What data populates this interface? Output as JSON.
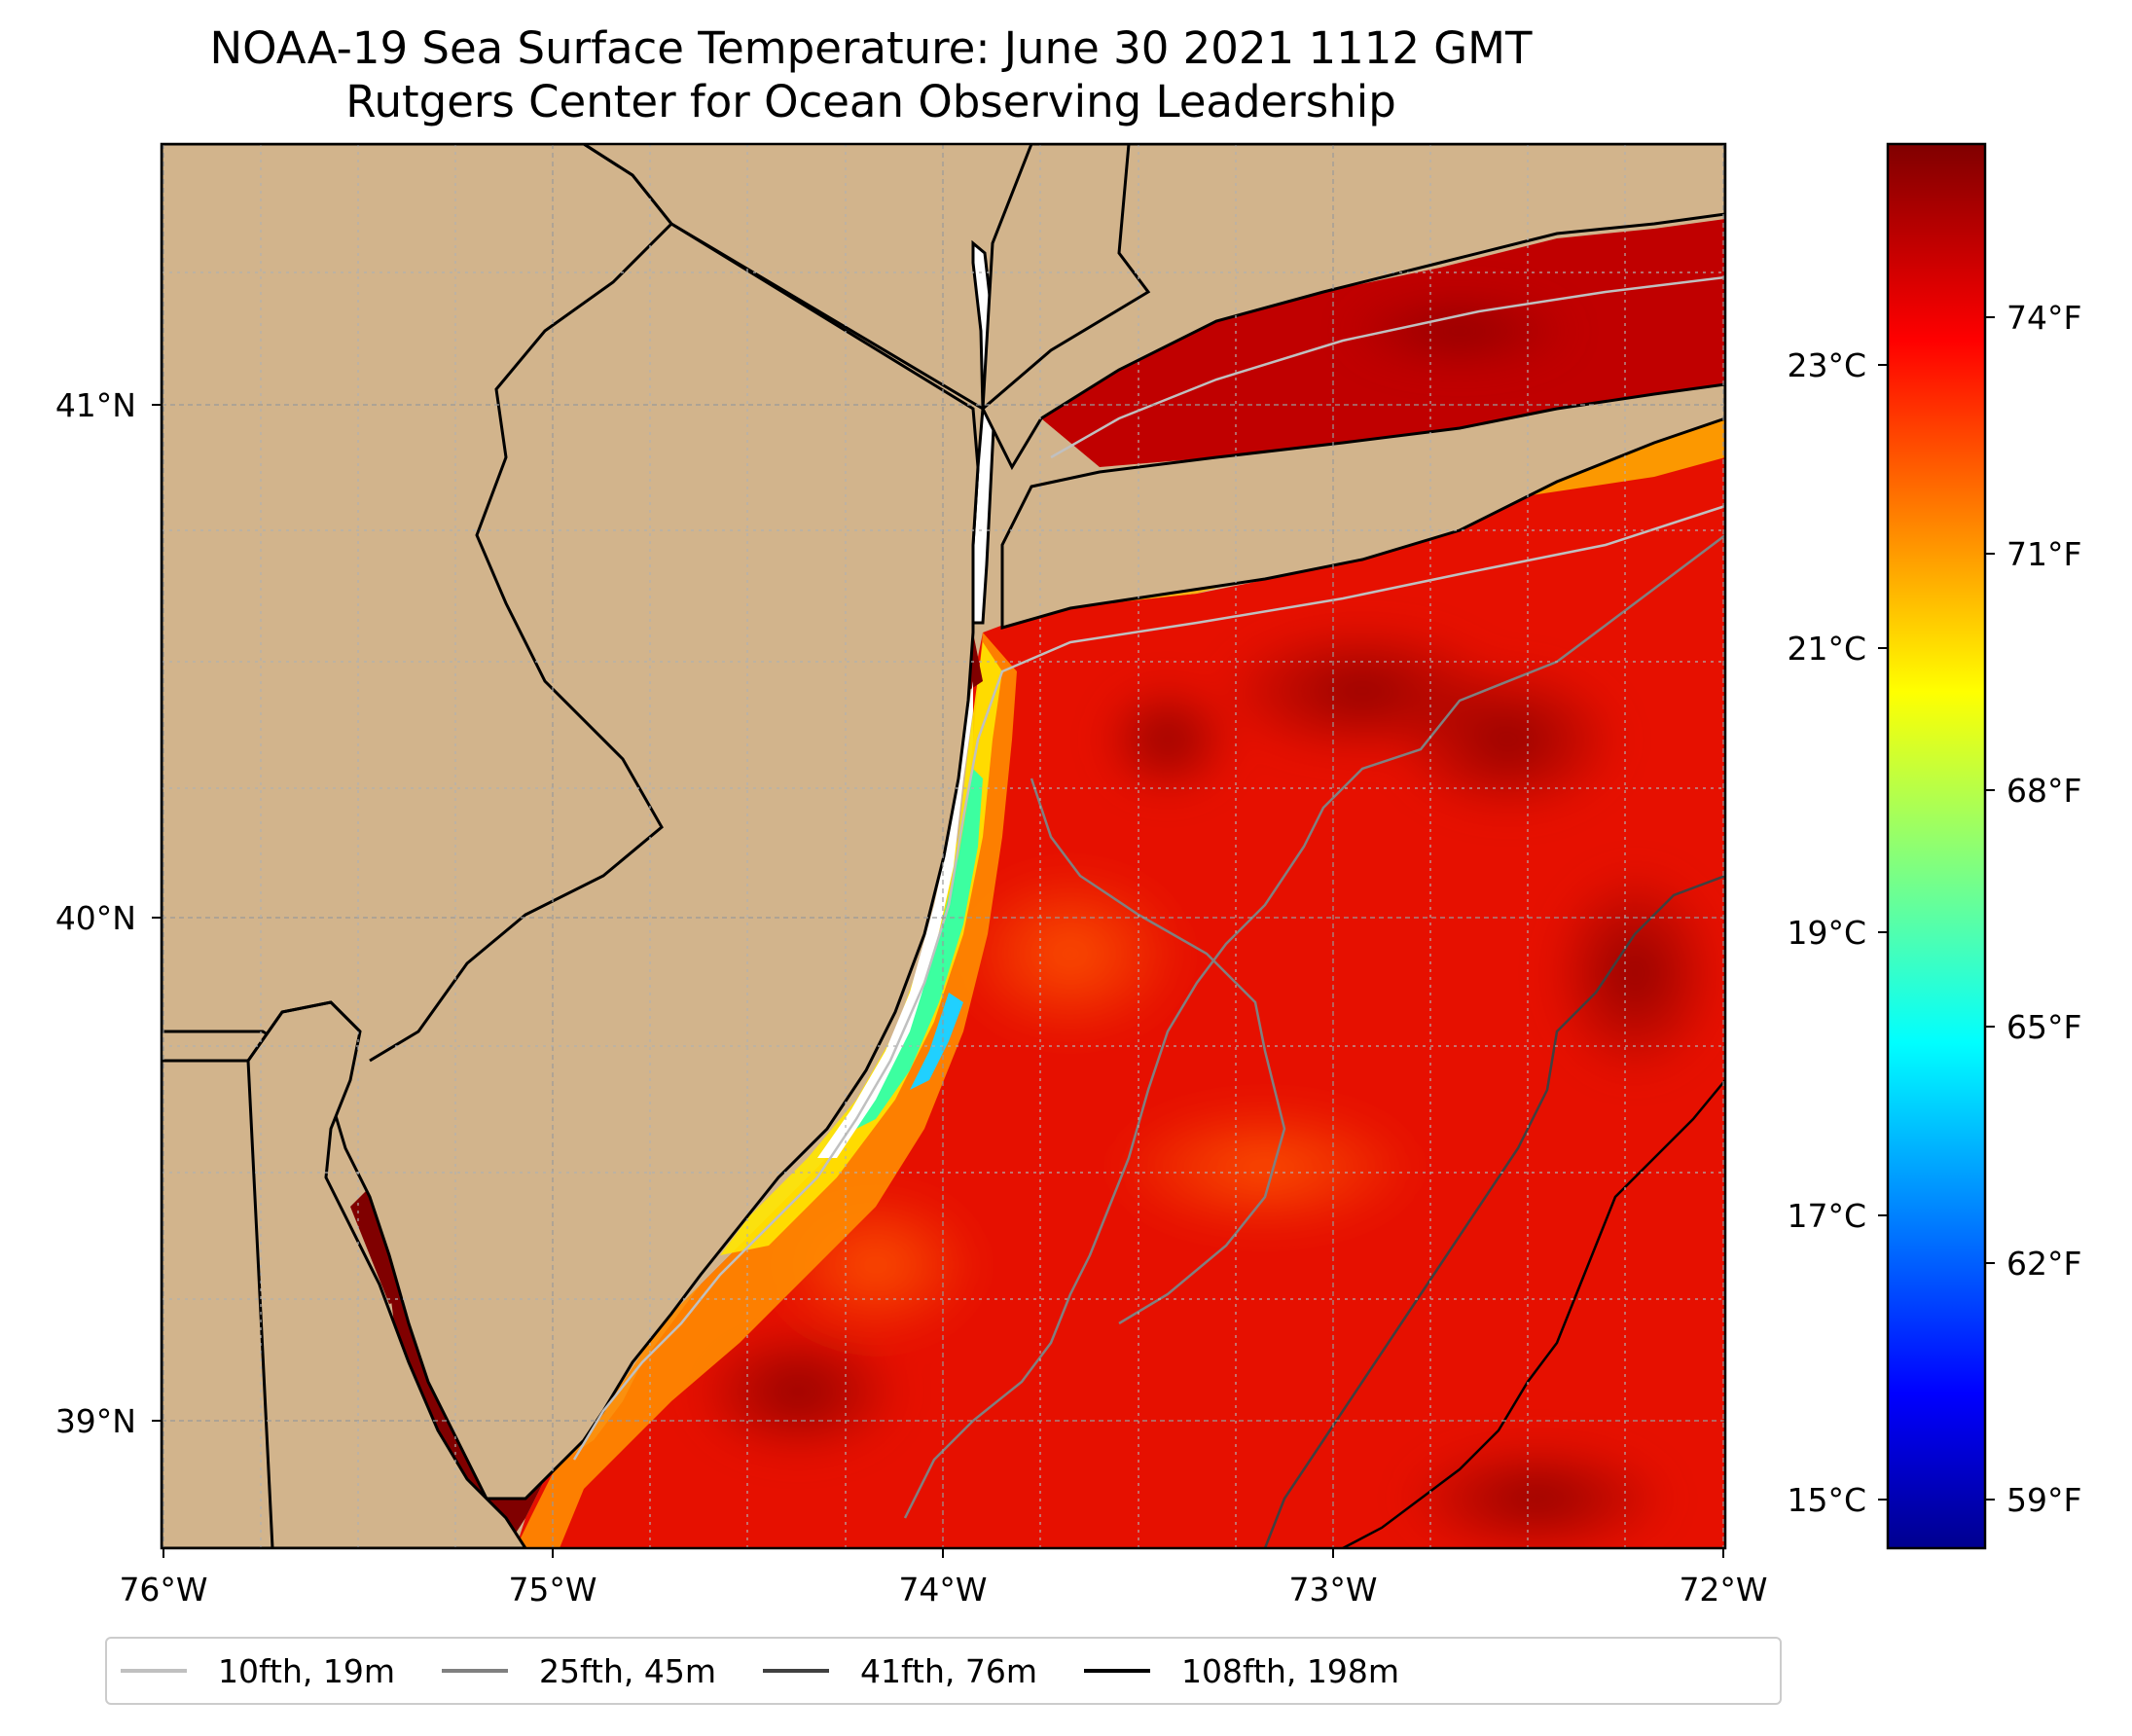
{
  "title": {
    "line1": "NOAA-19 Sea Surface Temperature: June 30 2021 1112 GMT",
    "line2": "Rutgers Center for Ocean Observing Leadership"
  },
  "map": {
    "lon_range": [
      -76,
      -72
    ],
    "lat_range": [
      38.75,
      41.5
    ],
    "lon_ticks": [
      {
        "value": -76,
        "label": "76°W"
      },
      {
        "value": -75,
        "label": "75°W"
      },
      {
        "value": -74,
        "label": "74°W"
      },
      {
        "value": -73,
        "label": "73°W"
      },
      {
        "value": -72,
        "label": "72°W"
      }
    ],
    "lat_ticks": [
      {
        "value": 41,
        "label": "41°N"
      },
      {
        "value": 40,
        "label": "40°N"
      },
      {
        "value": 39,
        "label": "39°N"
      }
    ],
    "land_color": "#d2b48c",
    "gridlines": "dashed"
  },
  "colorbar": {
    "colormap": "jet",
    "range_c": [
      14.7,
      24.6
    ],
    "celsius_ticks": [
      {
        "value": 15,
        "label": "15°C"
      },
      {
        "value": 17,
        "label": "17°C"
      },
      {
        "value": 19,
        "label": "19°C"
      },
      {
        "value": 21,
        "label": "21°C"
      },
      {
        "value": 23,
        "label": "23°C"
      }
    ],
    "fahrenheit_ticks": [
      {
        "value": 59,
        "label": "59°F"
      },
      {
        "value": 62,
        "label": "62°F"
      },
      {
        "value": 65,
        "label": "65°F"
      },
      {
        "value": 68,
        "label": "68°F"
      },
      {
        "value": 71,
        "label": "71°F"
      },
      {
        "value": 74,
        "label": "74°F"
      }
    ]
  },
  "legend": {
    "items": [
      {
        "label": "10fth, 19m",
        "color": "#c0c0c0"
      },
      {
        "label": "25fth, 45m",
        "color": "#808080"
      },
      {
        "label": "41fth, 76m",
        "color": "#404040"
      },
      {
        "label": "108fth, 198m",
        "color": "#000000"
      }
    ]
  }
}
